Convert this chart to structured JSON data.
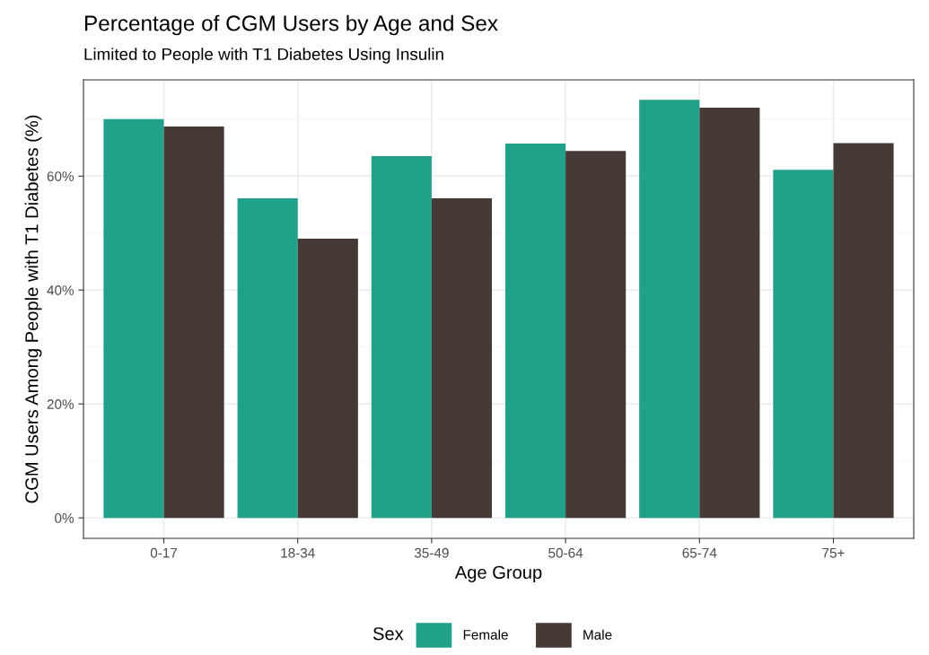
{
  "chart_data": {
    "type": "bar",
    "title": "Percentage of CGM Users by Age and Sex",
    "subtitle": "Limited to People with T1 Diabetes Using Insulin",
    "xlabel": "Age Group",
    "ylabel": "CGM Users Among People with T1 Diabetes (%)",
    "legend_title": "Sex",
    "categories": [
      "0-17",
      "18-34",
      "35-49",
      "50-64",
      "65-74",
      "75+"
    ],
    "series": [
      {
        "name": "Female",
        "color": "#21a08a",
        "values": [
          70.0,
          56.1,
          63.5,
          65.7,
          73.4,
          61.1
        ]
      },
      {
        "name": "Male",
        "color": "#463a37",
        "values": [
          68.7,
          49.0,
          56.1,
          64.4,
          72.0,
          65.8
        ]
      }
    ],
    "ylim": [
      -3.6,
      76.9
    ],
    "yticks": [
      {
        "value": 0,
        "label": "0%"
      },
      {
        "value": 20,
        "label": "20%"
      },
      {
        "value": 40,
        "label": "40%"
      },
      {
        "value": 60,
        "label": "60%"
      }
    ],
    "grid": true,
    "legend": "bottom"
  }
}
